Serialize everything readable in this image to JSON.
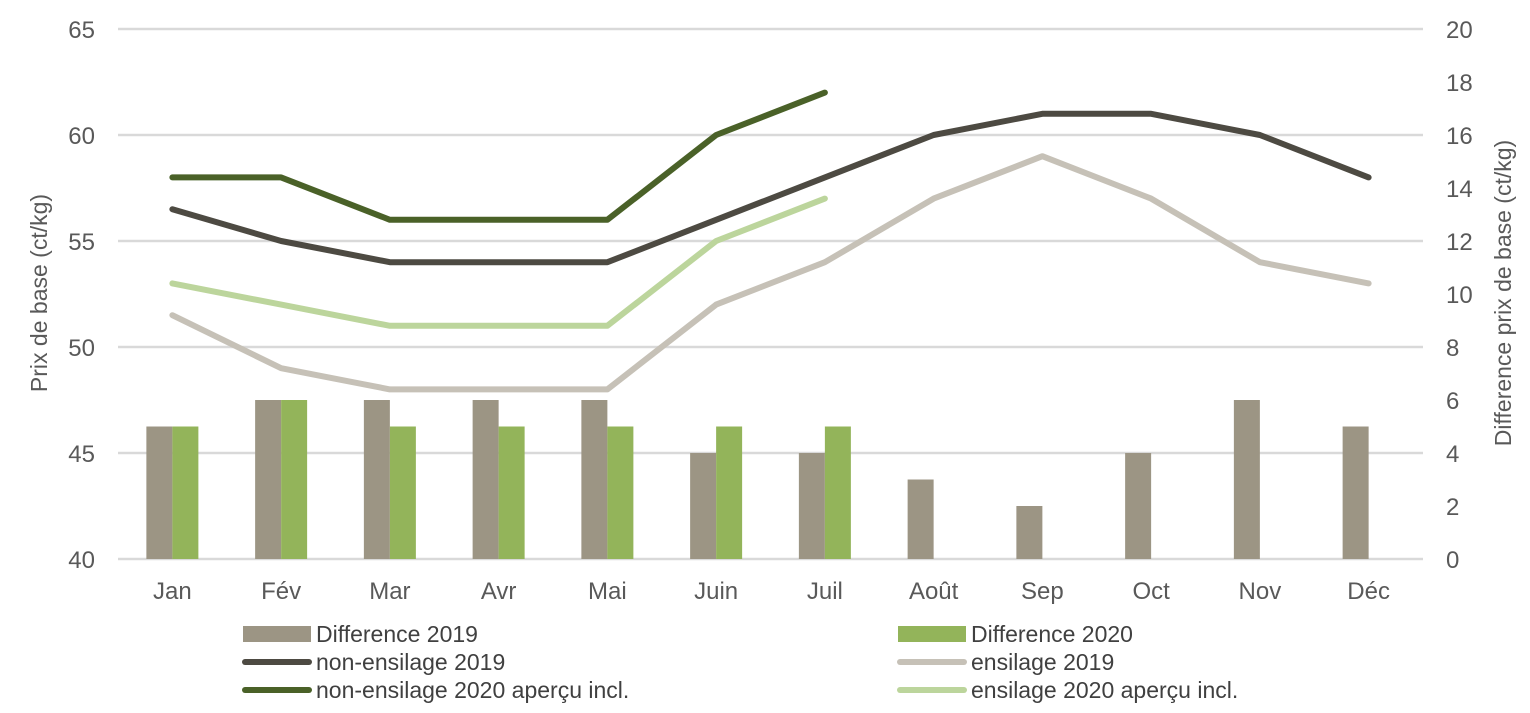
{
  "chart_data": {
    "type": "bar+line",
    "categories": [
      "Jan",
      "Fév",
      "Mar",
      "Avr",
      "Mai",
      "Juin",
      "Juil",
      "Août",
      "Sep",
      "Oct",
      "Nov",
      "Déc"
    ],
    "y_left": {
      "label": "Prix de base (ct/kg)",
      "ylim": [
        40,
        65
      ],
      "ticks": [
        40,
        45,
        50,
        55,
        60,
        65
      ]
    },
    "y_right": {
      "label": "Difference prix de base (ct/kg)",
      "ylim": [
        0,
        20
      ],
      "ticks": [
        0,
        2,
        4,
        6,
        8,
        10,
        12,
        14,
        16,
        18,
        20
      ]
    },
    "grid": true,
    "legend_position": "bottom",
    "bar_series": [
      {
        "name": "Difference 2019",
        "color": "#9c9584",
        "axis": "right",
        "values": [
          5,
          6,
          6,
          6,
          6,
          4,
          4,
          3,
          2,
          4,
          6,
          5
        ]
      },
      {
        "name": "Difference 2020",
        "color": "#93b45a",
        "axis": "right",
        "values": [
          5,
          6,
          5,
          5,
          5,
          5,
          5,
          null,
          null,
          null,
          null,
          null
        ]
      }
    ],
    "line_series": [
      {
        "name": "non-ensilage 2019",
        "color": "#4d4a42",
        "axis": "left",
        "values": [
          56.5,
          55,
          54,
          54,
          54,
          56,
          58,
          60,
          61,
          61,
          60,
          58
        ]
      },
      {
        "name": "ensilage 2019",
        "color": "#c6c1b7",
        "axis": "left",
        "values": [
          51.5,
          49,
          48,
          48,
          48,
          52,
          54,
          57,
          59,
          57,
          54,
          53
        ]
      },
      {
        "name": "non-ensilage 2020 aperçu incl.",
        "color": "#4a6128",
        "axis": "left",
        "values": [
          58,
          58,
          56,
          56,
          56,
          60,
          62,
          null,
          null,
          null,
          null,
          null
        ]
      },
      {
        "name": "ensilage 2020 aperçu incl.",
        "color": "#bcd59c",
        "axis": "left",
        "values": [
          53,
          52,
          51,
          51,
          51,
          55,
          57,
          null,
          null,
          null,
          null,
          null
        ]
      }
    ]
  }
}
